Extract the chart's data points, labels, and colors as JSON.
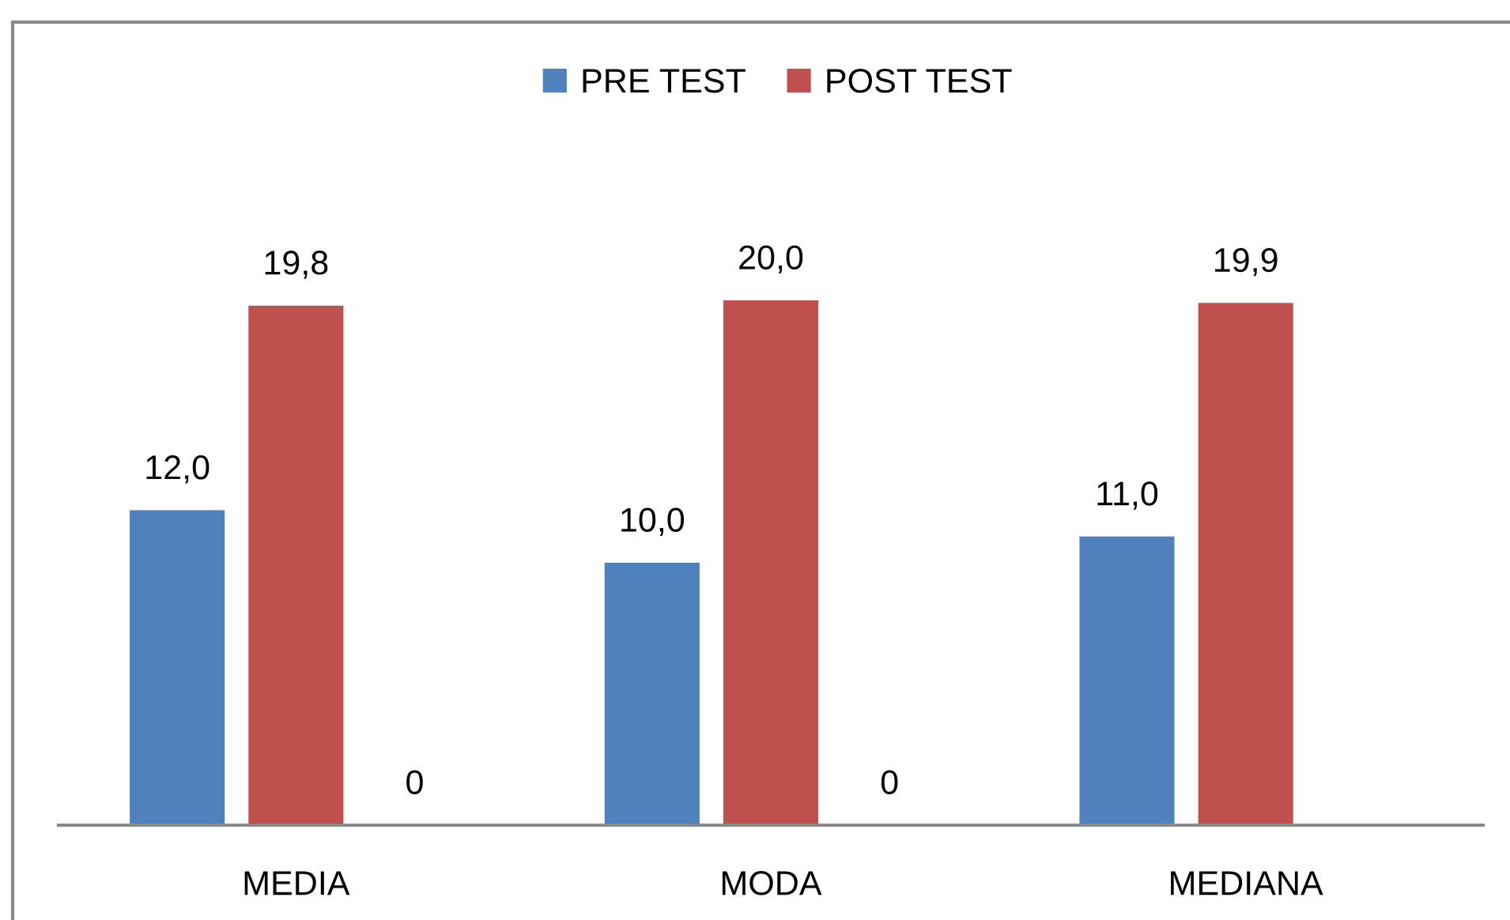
{
  "chart_data": {
    "type": "bar",
    "categories": [
      "MEDIA",
      "MODA",
      "MEDIANA"
    ],
    "series": [
      {
        "name": "PRE TEST",
        "color": "#4f81bd",
        "values": [
          12.0,
          10.0,
          11.0
        ],
        "value_labels": [
          "12,0",
          "10,0",
          "11,0"
        ]
      },
      {
        "name": "POST TEST",
        "color": "#c0504d",
        "values": [
          19.8,
          20.0,
          19.9
        ],
        "value_labels": [
          "19,8",
          "20,0",
          "19,9"
        ]
      }
    ],
    "annotations": [
      "0",
      "0"
    ],
    "legend": "top"
  }
}
